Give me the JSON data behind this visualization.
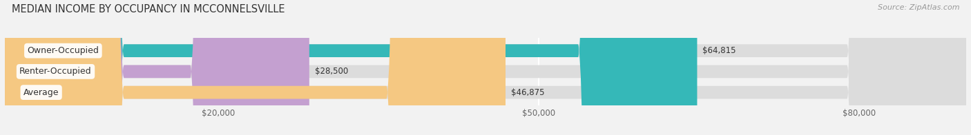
{
  "title": "MEDIAN INCOME BY OCCUPANCY IN MCCONNELSVILLE",
  "source": "Source: ZipAtlas.com",
  "categories": [
    "Owner-Occupied",
    "Renter-Occupied",
    "Average"
  ],
  "values": [
    64815,
    28500,
    46875
  ],
  "bar_colors": [
    "#35b8b8",
    "#c4a0d0",
    "#f5c882"
  ],
  "bar_bg_color": "#dcdcdc",
  "value_labels": [
    "$64,815",
    "$28,500",
    "$46,875"
  ],
  "xmax": 90000,
  "xlim": [
    0,
    90000
  ],
  "xticks": [
    20000,
    50000,
    80000
  ],
  "xtick_labels": [
    "$20,000",
    "$50,000",
    "$80,000"
  ],
  "title_fontsize": 10.5,
  "source_fontsize": 8,
  "label_fontsize": 9,
  "value_fontsize": 8.5,
  "background_color": "#f2f2f2"
}
